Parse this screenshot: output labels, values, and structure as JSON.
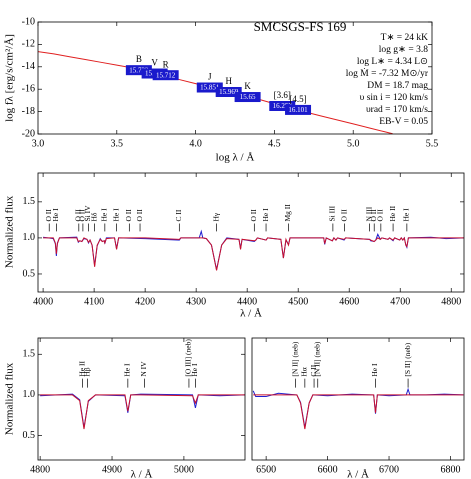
{
  "chart_data": [
    {
      "type": "line",
      "title": "SMCSGS-FS 169",
      "xlabel": "log λ / Å",
      "ylabel": "log fλ [erg/s/cm²/Å]",
      "xlim": [
        3.0,
        5.5
      ],
      "ylim": [
        -20,
        -10
      ],
      "xticks": [
        {
          "value": 3,
          "label": "3.0"
        },
        3.5,
        {
          "value": 4,
          "label": "4.0"
        },
        4.5,
        {
          "value": 5,
          "label": "5.0"
        },
        5.5
      ],
      "yticks": [
        -10,
        -12,
        -14,
        -16,
        -18,
        -20
      ],
      "series": [
        {
          "color": "#e02020",
          "x": [
            3.0,
            3.1,
            3.2,
            3.3,
            3.4,
            3.5,
            3.6,
            3.7,
            3.8,
            3.9,
            4.0,
            4.1,
            4.2,
            4.3,
            4.4,
            4.5,
            4.6,
            4.7,
            4.8,
            4.9,
            5.0,
            5.1,
            5.2,
            5.25
          ],
          "values": [
            -12.65,
            -12.85,
            -13.1,
            -13.35,
            -13.6,
            -13.85,
            -14.1,
            -14.45,
            -14.8,
            -15.15,
            -15.5,
            -15.85,
            -16.2,
            -16.55,
            -16.9,
            -17.3,
            -17.7,
            -18.05,
            -18.4,
            -18.75,
            -19.1,
            -19.45,
            -19.8,
            -19.98
          ]
        }
      ],
      "photometry": {
        "color": "#1a1acc",
        "bands": [
          "B",
          "V",
          "R",
          "J",
          "H",
          "K",
          "[3.6]",
          "[4.5]"
        ],
        "x": [
          3.64,
          3.74,
          3.81,
          4.09,
          4.21,
          4.33,
          4.55,
          4.65
        ],
        "values": [
          -14.3,
          -14.6,
          -14.75,
          -15.85,
          -16.25,
          -16.7,
          -17.5,
          -17.85
        ],
        "mags": [
          15.732,
          15.721,
          15.712,
          15.851,
          15.969,
          15.65,
          16.257,
          16.101
        ]
      },
      "params": [
        "T∗ = 24 kK",
        "log g∗ = 3.8",
        "log L∗ = 4.34 L⊙",
        "log Ṁ = -7.32 M⊙/yr",
        "DM = 18.7 mag",
        "υ sin i = 120 km/s",
        "υrad = 170 km/s",
        "EB-V = 0.05"
      ]
    },
    {
      "type": "line",
      "xlabel": "λ / Å",
      "ylabel": "Normalized flux",
      "xlim": [
        3990,
        4825
      ],
      "ylim": [
        0.25,
        1.9
      ],
      "xticks": [
        4000,
        4100,
        4200,
        4300,
        4400,
        4500,
        4600,
        4700,
        4800
      ],
      "yticks": [
        0.5,
        {
          "value": 1,
          "label": "1.0"
        },
        1.5
      ],
      "x": [
        4000,
        4020,
        4024,
        4026,
        4028,
        4032,
        4066,
        4069,
        4072,
        4076,
        4080,
        4086,
        4089,
        4092,
        4096,
        4101,
        4106,
        4112,
        4116,
        4120,
        4121,
        4124,
        4140,
        4144,
        4148,
        4200,
        4267,
        4270,
        4306,
        4310,
        4313,
        4320,
        4330,
        4340,
        4350,
        4360,
        4384,
        4387,
        4390,
        4414,
        4417,
        4420,
        4437,
        4440,
        4466,
        4471,
        4476,
        4481,
        4484,
        4550,
        4552,
        4555,
        4567,
        4570,
        4574,
        4577,
        4590,
        4593,
        4640,
        4642,
        4649,
        4652,
        4656,
        4661,
        4664,
        4676,
        4679,
        4686,
        4689,
        4699,
        4702,
        4705,
        4708,
        4711,
        4713,
        4716,
        4760,
        4790,
        4825
      ],
      "series": [
        {
          "color": "#2020d0",
          "values": [
            1.01,
            0.99,
            0.92,
            0.75,
            0.93,
            1.0,
            1.01,
            0.94,
            0.96,
            0.95,
            0.99,
            0.98,
            0.93,
            0.97,
            0.9,
            0.62,
            0.89,
            0.99,
            0.95,
            0.96,
            0.92,
            1.0,
            1.0,
            0.85,
            1.0,
            0.99,
            0.97,
            1.0,
            1.0,
            1.09,
            1.0,
            0.99,
            0.9,
            0.56,
            0.9,
            1.0,
            0.98,
            0.85,
            0.98,
            0.95,
            0.97,
            1.0,
            0.97,
            1.0,
            0.98,
            0.72,
            0.97,
            0.91,
            1.0,
            1.0,
            0.91,
            1.0,
            0.96,
            1.0,
            0.97,
            1.0,
            0.97,
            1.0,
            0.98,
            0.96,
            0.95,
            0.97,
            1.05,
            0.98,
            1.0,
            0.98,
            1.0,
            0.96,
            1.0,
            0.97,
            1.0,
            0.97,
            1.0,
            0.9,
            0.87,
            1.0,
            1.01,
            0.99,
            1.0
          ]
        },
        {
          "color": "#c8102e",
          "values": [
            1.0,
            1.0,
            0.93,
            0.78,
            0.92,
            1.0,
            1.0,
            0.95,
            0.96,
            0.95,
            1.0,
            0.98,
            0.94,
            0.97,
            0.9,
            0.6,
            0.9,
            0.98,
            0.95,
            0.96,
            0.93,
            0.99,
            1.0,
            0.84,
            1.0,
            1.0,
            0.98,
            1.0,
            1.0,
            1.0,
            1.0,
            0.99,
            0.9,
            0.55,
            0.9,
            0.99,
            0.98,
            0.84,
            0.98,
            0.96,
            0.97,
            1.0,
            0.97,
            1.0,
            0.98,
            0.72,
            0.98,
            0.9,
            1.0,
            1.0,
            0.92,
            1.0,
            0.96,
            1.0,
            0.97,
            1.0,
            0.98,
            1.0,
            0.98,
            0.97,
            0.95,
            0.97,
            1.0,
            0.98,
            1.0,
            0.98,
            1.0,
            0.97,
            1.0,
            0.97,
            1.0,
            0.97,
            1.0,
            0.9,
            0.88,
            1.0,
            1.0,
            1.0,
            1.0
          ]
        }
      ],
      "annotations": [
        {
          "text": "O II",
          "x": 4012
        },
        {
          "text": "He I",
          "x": 4026
        },
        {
          "text": "O II",
          "x": 4070
        },
        {
          "text": "O II",
          "x": 4078
        },
        {
          "text": "Si IV",
          "x": 4089
        },
        {
          "text": "Hδ",
          "x": 4101
        },
        {
          "text": "He I",
          "x": 4121
        },
        {
          "text": "He I",
          "x": 4144
        },
        {
          "text": "O II",
          "x": 4169
        },
        {
          "text": "O II",
          "x": 4190
        },
        {
          "text": "C II",
          "x": 4267
        },
        {
          "text": "Hγ",
          "x": 4340
        },
        {
          "text": "O II",
          "x": 4414
        },
        {
          "text": "He I",
          "x": 4437
        },
        {
          "text": "Mg II",
          "x": 4481
        },
        {
          "text": "Si III",
          "x": 4568
        },
        {
          "text": "O II",
          "x": 4591
        },
        {
          "text": "N III",
          "x": 4640
        },
        {
          "text": "O II",
          "x": 4649
        },
        {
          "text": "O II",
          "x": 4662
        },
        {
          "text": "He II",
          "x": 4686
        },
        {
          "text": "He I",
          "x": 4713
        }
      ]
    },
    {
      "type": "line",
      "xlabel": "λ / Å",
      "ylabel": "Normalized flux",
      "xlim": [
        4797,
        5085
      ],
      "ylim": [
        0.2,
        1.7
      ],
      "xticks": [
        4800,
        4900,
        5000
      ],
      "yticks": [
        0.5,
        {
          "value": 1,
          "label": "1.0"
        },
        1.5
      ],
      "x": [
        4800,
        4845,
        4855,
        4861,
        4867,
        4877,
        4918,
        4922,
        4926,
        4940,
        5012,
        5016,
        5020,
        5050,
        5085
      ],
      "series": [
        {
          "color": "#2020d0",
          "values": [
            0.99,
            1.01,
            0.94,
            0.6,
            0.92,
            1.0,
            0.99,
            0.78,
            1.0,
            1.01,
            1.0,
            0.84,
            1.0,
            0.99,
            1.0
          ]
        },
        {
          "color": "#c8102e",
          "values": [
            1.0,
            1.0,
            0.93,
            0.58,
            0.93,
            1.0,
            1.0,
            0.8,
            1.0,
            1.0,
            0.99,
            0.9,
            1.0,
            1.0,
            1.0
          ]
        }
      ],
      "annotations": [
        {
          "text": "He II",
          "x": 4859
        },
        {
          "text": "Hβ",
          "x": 4866
        },
        {
          "text": "He I",
          "x": 4922
        },
        {
          "text": "N IV",
          "x": 4945
        },
        {
          "text": "[O III] (neb)",
          "x": 5007
        },
        {
          "text": "He I",
          "x": 5016
        }
      ]
    },
    {
      "type": "line",
      "xlabel": "λ / Å",
      "xlim": [
        6477,
        6822
      ],
      "ylim": [
        0.2,
        1.7
      ],
      "xticks": [
        6500,
        6600,
        6700,
        6800
      ],
      "x": [
        6479,
        6483,
        6500,
        6520,
        6550,
        6556,
        6563,
        6570,
        6576,
        6600,
        6640,
        6675,
        6678,
        6681,
        6700,
        6728,
        6731,
        6734,
        6760,
        6790,
        6821
      ],
      "series": [
        {
          "color": "#2020d0",
          "values": [
            1.05,
            0.98,
            0.98,
            1.02,
            1.0,
            0.91,
            0.6,
            0.9,
            1.0,
            0.99,
            1.01,
            1.0,
            0.77,
            1.0,
            0.99,
            1.0,
            1.07,
            1.0,
            1.0,
            1.01,
            1.0
          ]
        },
        {
          "color": "#c8102e",
          "values": [
            1.0,
            1.0,
            1.0,
            1.0,
            1.0,
            0.9,
            0.58,
            0.9,
            1.0,
            1.0,
            1.0,
            1.0,
            0.78,
            1.0,
            1.0,
            1.0,
            1.0,
            1.0,
            1.0,
            1.0,
            1.0
          ]
        }
      ],
      "annotations": [
        {
          "text": "[N II] (neb)",
          "x": 6548
        },
        {
          "text": "Hα",
          "x": 6563
        },
        {
          "text": "C II",
          "x": 6578
        },
        {
          "text": "[N II] (neb)",
          "x": 6584
        },
        {
          "text": "He I",
          "x": 6678
        },
        {
          "text": "[S II] (neb)",
          "x": 6731
        }
      ]
    }
  ]
}
